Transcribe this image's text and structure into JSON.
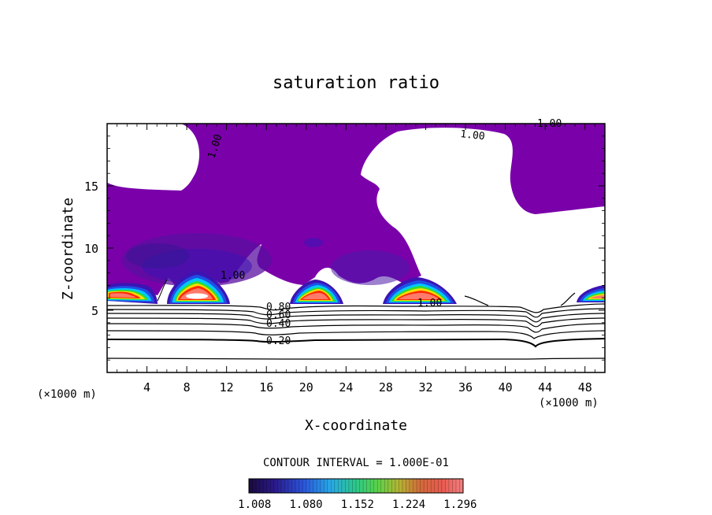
{
  "chart_data": {
    "type": "contour",
    "title": "saturation ratio",
    "xlabel": "X-coordinate",
    "ylabel": "Z-coordinate",
    "x_units": "(×1000 m)",
    "z_units": "(×1000 m)",
    "xlim": [
      0,
      50
    ],
    "ylim": [
      0,
      20
    ],
    "x_ticks": [
      4,
      8,
      12,
      16,
      20,
      24,
      28,
      32,
      36,
      40,
      44,
      48
    ],
    "y_ticks": [
      5,
      10,
      15
    ],
    "contour_interval_text": "CONTOUR INTERVAL = 1.000E-01",
    "contour_labels": [
      "1.00",
      "1.00",
      "1.00",
      "1.00",
      "1.00",
      "0.80",
      "0.60",
      "0.40",
      "0.20"
    ],
    "colorbar_ticks": [
      "1.008",
      "1.080",
      "1.152",
      "1.224",
      "1.296"
    ],
    "colorbar_range": [
      1.0,
      1.3
    ],
    "colors": {
      "supersaturated_fill": "#7a00aa",
      "deep_blue": "#3c14b4",
      "blue": "#1e50e6",
      "cyan": "#00c8ff",
      "green": "#32dc32",
      "yellow": "#ffdc00",
      "red": "#ff2a00",
      "salmon": "#ff7a6a",
      "contour_line": "#000000"
    },
    "cloud_cores": [
      {
        "x_center": 2.3,
        "z_base": 5.8,
        "z_top": 7.0
      },
      {
        "x_center": 9.3,
        "z_base": 5.6,
        "z_top": 7.8
      },
      {
        "x_center": 20.5,
        "z_base": 5.6,
        "z_top": 7.2
      },
      {
        "x_center": 31.5,
        "z_base": 5.6,
        "z_top": 7.4
      },
      {
        "x_center": 49.5,
        "z_base": 5.6,
        "z_top": 6.8
      }
    ]
  }
}
